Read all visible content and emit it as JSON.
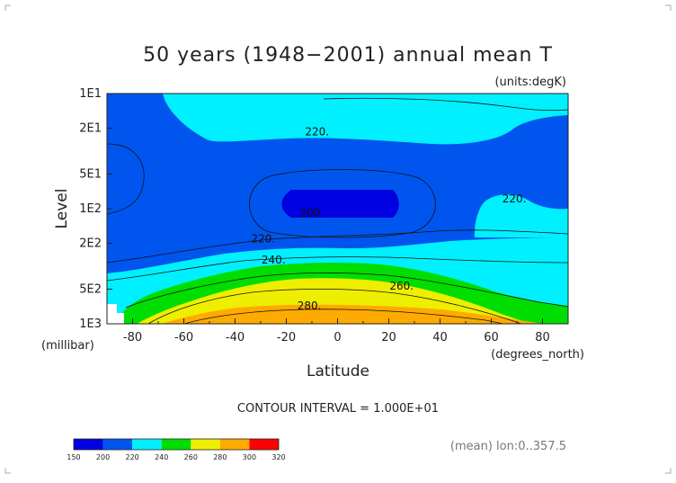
{
  "chart_data": {
    "type": "contour",
    "title": "50 years (1948−2001) annual mean T",
    "units": "(units:degK)",
    "xlabel": "Latitude",
    "xunits": "(degrees_north)",
    "ylabel": "Level",
    "yunits": "(millibar)",
    "xlim": [
      -90,
      90
    ],
    "ylim": [
      1000,
      10
    ],
    "yscale": "log",
    "x_ticks": [
      -80,
      -60,
      -40,
      -20,
      0,
      20,
      40,
      60,
      80
    ],
    "x_tick_labels": [
      "-80",
      "-60",
      "-40",
      "-20",
      "0",
      "20",
      "40",
      "60",
      "80"
    ],
    "y_ticks": [
      10,
      20,
      50,
      100,
      200,
      500,
      1000
    ],
    "y_tick_labels": [
      "1E1",
      "2E1",
      "5E1",
      "1E2",
      "2E2",
      "5E2",
      "1E3"
    ],
    "contour_interval_text": "CONTOUR INTERVAL = 1.000E+01",
    "footnote": "(mean) lon:0..357.5",
    "contour_labels": [
      {
        "text": "220.",
        "lat": -8,
        "level": 21.5
      },
      {
        "text": "200.",
        "lat": -10,
        "level": 109
      },
      {
        "text": "220.",
        "lat": 69,
        "level": 82
      },
      {
        "text": "220.",
        "lat": -29,
        "level": 183
      },
      {
        "text": "240.",
        "lat": -25,
        "level": 280
      },
      {
        "text": "260.",
        "lat": 25,
        "level": 470
      },
      {
        "text": "280.",
        "lat": -11,
        "level": 700
      }
    ],
    "colorbar": {
      "levels": [
        150,
        200,
        220,
        240,
        260,
        280,
        300,
        320
      ],
      "labels": [
        "150",
        "200",
        "220",
        "240",
        "260",
        "280",
        "300",
        "320"
      ],
      "colors": [
        "#0000e0",
        "#0055ee",
        "#00f0ff",
        "#00dd00",
        "#eeee00",
        "#ffaa00",
        "#ff0000"
      ]
    }
  }
}
